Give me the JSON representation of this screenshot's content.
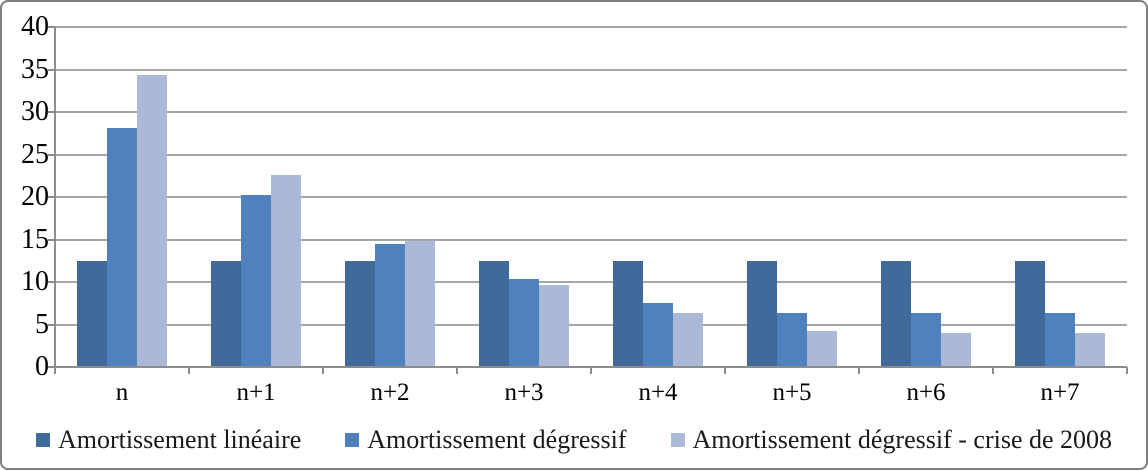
{
  "chart_data": {
    "type": "bar",
    "categories": [
      "n",
      "n+1",
      "n+2",
      "n+3",
      "n+4",
      "n+5",
      "n+6",
      "n+7"
    ],
    "series": [
      {
        "name": "Amortissement linéaire",
        "color": "#406A9A",
        "values": [
          12.5,
          12.5,
          12.5,
          12.5,
          12.5,
          12.5,
          12.5,
          12.5
        ]
      },
      {
        "name": "Amortissement dégressif",
        "color": "#4F82BD",
        "values": [
          28.1,
          20.2,
          14.5,
          10.4,
          7.5,
          6.4,
          6.4,
          6.4
        ]
      },
      {
        "name": "Amortissement dégressif - crise de 2008",
        "color": "#ACB8D8",
        "values": [
          34.4,
          22.6,
          14.8,
          9.7,
          6.4,
          4.2,
          4.0,
          4.0
        ]
      }
    ],
    "title": "",
    "xlabel": "",
    "ylabel": "",
    "ylim": [
      0,
      40
    ],
    "y_ticks": [
      0,
      5,
      10,
      15,
      20,
      25,
      30,
      35,
      40
    ],
    "grid": true,
    "legend_position": "bottom"
  },
  "colors": {
    "gridline": "#A6A6A6",
    "axis": "#8C8C8C",
    "border": "#7F7F7F",
    "text": "#000000"
  }
}
